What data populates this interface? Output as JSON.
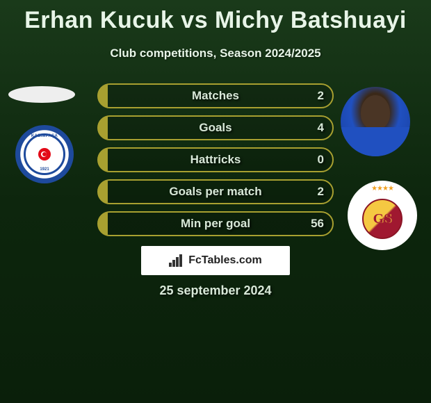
{
  "title": "Erhan Kucuk vs Michy Batshuayi",
  "subtitle": "Club competitions, Season 2024/2025",
  "date": "25 september 2024",
  "bars": [
    {
      "label": "Matches",
      "value": "2",
      "border": "#a8a030",
      "fill_pct": 4
    },
    {
      "label": "Goals",
      "value": "4",
      "border": "#a8a030",
      "fill_pct": 4
    },
    {
      "label": "Hattricks",
      "value": "0",
      "border": "#a8a030",
      "fill_pct": 4
    },
    {
      "label": "Goals per match",
      "value": "2",
      "border": "#a8a030",
      "fill_pct": 4
    },
    {
      "label": "Min per goal",
      "value": "56",
      "border": "#a8a030",
      "fill_pct": 4
    }
  ],
  "brand": "FcTables.com",
  "player_left": "Erhan Kucuk",
  "player_right": "Michy Batshuayi",
  "club_left": "Kasimpasa",
  "club_right": "Galatasaray"
}
